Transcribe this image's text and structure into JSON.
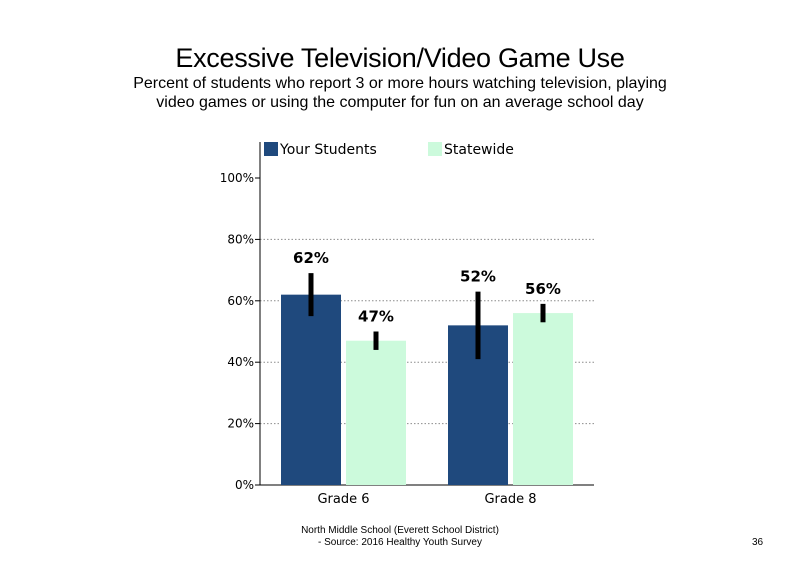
{
  "slide": {
    "title": "Excessive Television/Video Game Use",
    "subtitle": "Percent of students who report 3 or more hours watching television, playing video games or using the computer for fun on an average school day",
    "footer_line1": "North Middle School (Everett School District)",
    "footer_line2": "- Source: 2016 Healthy  Youth Survey",
    "page_number": "36"
  },
  "chart_data": {
    "type": "bar",
    "categories": [
      "Grade 6",
      "Grade 8"
    ],
    "series": [
      {
        "name": "Your Students",
        "values": [
          62,
          52
        ],
        "labels": [
          "62%",
          "52%"
        ],
        "error_low": [
          55,
          41
        ],
        "error_high": [
          69,
          63
        ],
        "color": "#1f497d"
      },
      {
        "name": "Statewide",
        "values": [
          47,
          56
        ],
        "labels": [
          "47%",
          "56%"
        ],
        "error_low": [
          44,
          53
        ],
        "error_high": [
          50,
          59
        ],
        "color": "#ccfadc"
      }
    ],
    "ylim": [
      0,
      100
    ],
    "yticks": [
      0,
      20,
      40,
      60,
      80,
      100
    ],
    "ytick_labels": [
      "0%",
      "20%",
      "40%",
      "60%",
      "80%",
      "100%"
    ],
    "grid": "dotted horizontal",
    "legend": "top",
    "xlabel": "",
    "ylabel": ""
  }
}
